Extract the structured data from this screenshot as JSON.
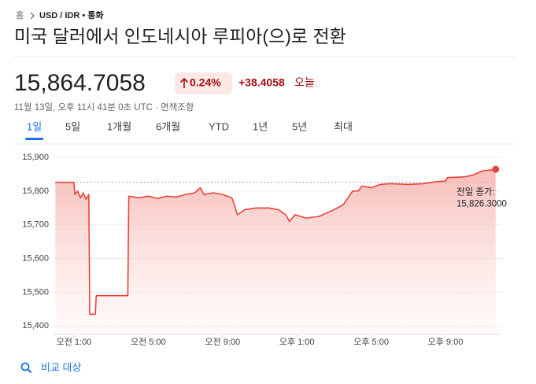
{
  "breadcrumb": [
    "홈",
    "USD / IDR • 통화"
  ],
  "header": {
    "title": "미국 달러에서 인도네시아 루피아(으)로 전환",
    "price": "15,864.7058",
    "change_percent": "0.24%",
    "change": "+38.4058",
    "period": "오늘",
    "timestamp": "11월 13일, 오후 11시 41분 0초 UTC · 면책조항"
  },
  "tabs": [
    "1일",
    "5일",
    "1개월",
    "6개월",
    "YTD",
    "1년",
    "5년",
    "최대"
  ],
  "selected_tab": 0,
  "compare": "비교 대상",
  "chart_data": {
    "type": "line",
    "color": "#e8433a",
    "grid": true,
    "x": [
      0,
      1.0,
      1.05,
      1.2,
      1.35,
      1.5,
      1.65,
      1.8,
      1.85,
      2.15,
      2.2,
      3.9,
      3.95,
      4.5,
      5.0,
      5.5,
      6.0,
      6.5,
      7.0,
      7.5,
      7.8,
      8.0,
      8.5,
      9.0,
      9.5,
      9.6,
      9.8,
      10.2,
      10.8,
      11.5,
      12.0,
      12.4,
      12.6,
      12.9,
      13.5,
      14.2,
      15.0,
      15.5,
      16.0,
      16.3,
      16.5,
      17.0,
      17.5,
      18.0,
      19.0,
      19.8,
      20.5,
      21.0,
      21.1,
      22.0,
      22.5,
      23.0,
      23.7
    ],
    "values": [
      15826,
      15826,
      15790,
      15800,
      15780,
      15795,
      15775,
      15790,
      15435,
      15435,
      15490,
      15490,
      15785,
      15780,
      15785,
      15778,
      15785,
      15782,
      15790,
      15795,
      15810,
      15790,
      15795,
      15790,
      15780,
      15765,
      15730,
      15745,
      15750,
      15750,
      15745,
      15730,
      15710,
      15730,
      15720,
      15725,
      15745,
      15760,
      15800,
      15800,
      15815,
      15810,
      15820,
      15822,
      15820,
      15822,
      15828,
      15830,
      15840,
      15842,
      15848,
      15860,
      15864.7058
    ],
    "xlim": [
      -0.1,
      24.05
    ],
    "xticks": [
      {
        "value": 1,
        "label": "오전 1:00"
      },
      {
        "value": 5,
        "label": "오전 5:00"
      },
      {
        "value": 9,
        "label": "오전 9:00"
      },
      {
        "value": 13,
        "label": "오후 1:00"
      },
      {
        "value": 17,
        "label": "오후 5:00"
      },
      {
        "value": 21,
        "label": "오후 9:00"
      }
    ],
    "ylim": [
      15375,
      15935
    ],
    "yticks": [
      {
        "value": 15400,
        "label": "15,400"
      },
      {
        "value": 15500,
        "label": "15,500"
      },
      {
        "value": 15600,
        "label": "15,600"
      },
      {
        "value": 15700,
        "label": "15,700"
      },
      {
        "value": 15800,
        "label": "15,800"
      },
      {
        "value": 15900,
        "label": "15,900"
      }
    ],
    "previous_close_title": "전일 종가:",
    "previous_close": {
      "value": 15826.3,
      "label": "15,826.3000"
    }
  }
}
